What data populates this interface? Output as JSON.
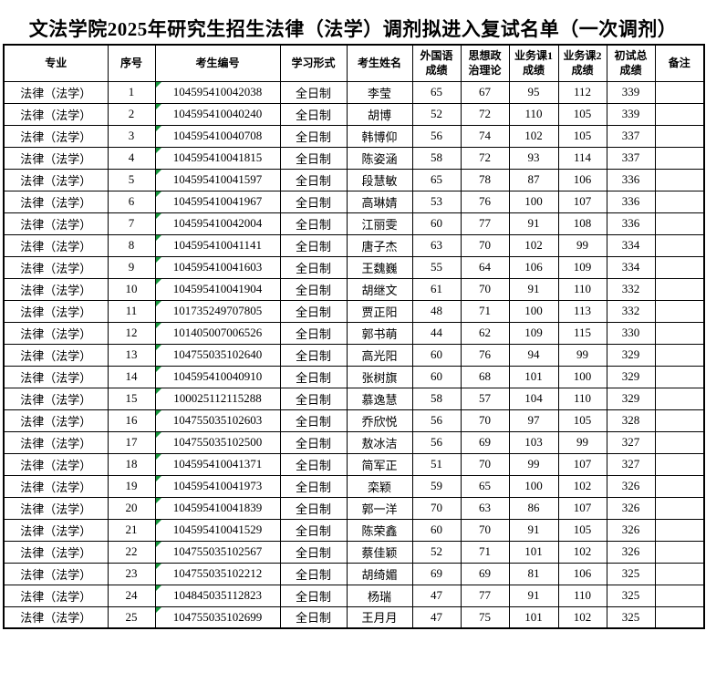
{
  "title": "文法学院2025年研究生招生法律（法学）调剂拟进入复试名单（一次调剂）",
  "colors": {
    "grid": "#000000",
    "text": "#000000",
    "background": "#ffffff",
    "text_format_flag_green": "#17963c"
  },
  "table": {
    "headers": [
      "专业",
      "序号",
      "考生编号",
      "学习形式",
      "考生姓名",
      "外国语\n成绩",
      "思想政\n治理论",
      "业务课1\n成绩",
      "业务课2\n成绩",
      "初试总\n成绩",
      "备注"
    ],
    "rows": [
      {
        "major": "法律（法学）",
        "no": "1",
        "candidate_no": "104595410042038",
        "study_form": "全日制",
        "name": "李莹",
        "foreign_lang": "65",
        "politics": "67",
        "course1": "95",
        "course2": "112",
        "total": "339",
        "remark": ""
      },
      {
        "major": "法律（法学）",
        "no": "2",
        "candidate_no": "104595410040240",
        "study_form": "全日制",
        "name": "胡博",
        "foreign_lang": "52",
        "politics": "72",
        "course1": "110",
        "course2": "105",
        "total": "339",
        "remark": ""
      },
      {
        "major": "法律（法学）",
        "no": "3",
        "candidate_no": "104595410040708",
        "study_form": "全日制",
        "name": "韩博仰",
        "foreign_lang": "56",
        "politics": "74",
        "course1": "102",
        "course2": "105",
        "total": "337",
        "remark": ""
      },
      {
        "major": "法律（法学）",
        "no": "4",
        "candidate_no": "104595410041815",
        "study_form": "全日制",
        "name": "陈姿涵",
        "foreign_lang": "58",
        "politics": "72",
        "course1": "93",
        "course2": "114",
        "total": "337",
        "remark": ""
      },
      {
        "major": "法律（法学）",
        "no": "5",
        "candidate_no": "104595410041597",
        "study_form": "全日制",
        "name": "段慧敏",
        "foreign_lang": "65",
        "politics": "78",
        "course1": "87",
        "course2": "106",
        "total": "336",
        "remark": ""
      },
      {
        "major": "法律（法学）",
        "no": "6",
        "candidate_no": "104595410041967",
        "study_form": "全日制",
        "name": "高琳婧",
        "foreign_lang": "53",
        "politics": "76",
        "course1": "100",
        "course2": "107",
        "total": "336",
        "remark": ""
      },
      {
        "major": "法律（法学）",
        "no": "7",
        "candidate_no": "104595410042004",
        "study_form": "全日制",
        "name": "江丽雯",
        "foreign_lang": "60",
        "politics": "77",
        "course1": "91",
        "course2": "108",
        "total": "336",
        "remark": ""
      },
      {
        "major": "法律（法学）",
        "no": "8",
        "candidate_no": "104595410041141",
        "study_form": "全日制",
        "name": "唐子杰",
        "foreign_lang": "63",
        "politics": "70",
        "course1": "102",
        "course2": "99",
        "total": "334",
        "remark": ""
      },
      {
        "major": "法律（法学）",
        "no": "9",
        "candidate_no": "104595410041603",
        "study_form": "全日制",
        "name": "王魏巍",
        "foreign_lang": "55",
        "politics": "64",
        "course1": "106",
        "course2": "109",
        "total": "334",
        "remark": ""
      },
      {
        "major": "法律（法学）",
        "no": "10",
        "candidate_no": "104595410041904",
        "study_form": "全日制",
        "name": "胡继文",
        "foreign_lang": "61",
        "politics": "70",
        "course1": "91",
        "course2": "110",
        "total": "332",
        "remark": ""
      },
      {
        "major": "法律（法学）",
        "no": "11",
        "candidate_no": "101735249707805",
        "study_form": "全日制",
        "name": "贾正阳",
        "foreign_lang": "48",
        "politics": "71",
        "course1": "100",
        "course2": "113",
        "total": "332",
        "remark": ""
      },
      {
        "major": "法律（法学）",
        "no": "12",
        "candidate_no": "101405007006526",
        "study_form": "全日制",
        "name": "郭书萌",
        "foreign_lang": "44",
        "politics": "62",
        "course1": "109",
        "course2": "115",
        "total": "330",
        "remark": ""
      },
      {
        "major": "法律（法学）",
        "no": "13",
        "candidate_no": "104755035102640",
        "study_form": "全日制",
        "name": "高光阳",
        "foreign_lang": "60",
        "politics": "76",
        "course1": "94",
        "course2": "99",
        "total": "329",
        "remark": ""
      },
      {
        "major": "法律（法学）",
        "no": "14",
        "candidate_no": "104595410040910",
        "study_form": "全日制",
        "name": "张树旗",
        "foreign_lang": "60",
        "politics": "68",
        "course1": "101",
        "course2": "100",
        "total": "329",
        "remark": ""
      },
      {
        "major": "法律（法学）",
        "no": "15",
        "candidate_no": "100025112115288",
        "study_form": "全日制",
        "name": "慕逸慧",
        "foreign_lang": "58",
        "politics": "57",
        "course1": "104",
        "course2": "110",
        "total": "329",
        "remark": ""
      },
      {
        "major": "法律（法学）",
        "no": "16",
        "candidate_no": "104755035102603",
        "study_form": "全日制",
        "name": "乔欣悦",
        "foreign_lang": "56",
        "politics": "70",
        "course1": "97",
        "course2": "105",
        "total": "328",
        "remark": ""
      },
      {
        "major": "法律（法学）",
        "no": "17",
        "candidate_no": "104755035102500",
        "study_form": "全日制",
        "name": "敖冰洁",
        "foreign_lang": "56",
        "politics": "69",
        "course1": "103",
        "course2": "99",
        "total": "327",
        "remark": ""
      },
      {
        "major": "法律（法学）",
        "no": "18",
        "candidate_no": "104595410041371",
        "study_form": "全日制",
        "name": "简军正",
        "foreign_lang": "51",
        "politics": "70",
        "course1": "99",
        "course2": "107",
        "total": "327",
        "remark": ""
      },
      {
        "major": "法律（法学）",
        "no": "19",
        "candidate_no": "104595410041973",
        "study_form": "全日制",
        "name": "栾颖",
        "foreign_lang": "59",
        "politics": "65",
        "course1": "100",
        "course2": "102",
        "total": "326",
        "remark": ""
      },
      {
        "major": "法律（法学）",
        "no": "20",
        "candidate_no": "104595410041839",
        "study_form": "全日制",
        "name": "郭一洋",
        "foreign_lang": "70",
        "politics": "63",
        "course1": "86",
        "course2": "107",
        "total": "326",
        "remark": ""
      },
      {
        "major": "法律（法学）",
        "no": "21",
        "candidate_no": "104595410041529",
        "study_form": "全日制",
        "name": "陈荣鑫",
        "foreign_lang": "60",
        "politics": "70",
        "course1": "91",
        "course2": "105",
        "total": "326",
        "remark": ""
      },
      {
        "major": "法律（法学）",
        "no": "22",
        "candidate_no": "104755035102567",
        "study_form": "全日制",
        "name": "蔡佳颖",
        "foreign_lang": "52",
        "politics": "71",
        "course1": "101",
        "course2": "102",
        "total": "326",
        "remark": ""
      },
      {
        "major": "法律（法学）",
        "no": "23",
        "candidate_no": "104755035102212",
        "study_form": "全日制",
        "name": "胡绮媚",
        "foreign_lang": "69",
        "politics": "69",
        "course1": "81",
        "course2": "106",
        "total": "325",
        "remark": ""
      },
      {
        "major": "法律（法学）",
        "no": "24",
        "candidate_no": "104845035112823",
        "study_form": "全日制",
        "name": "杨瑞",
        "foreign_lang": "47",
        "politics": "77",
        "course1": "91",
        "course2": "110",
        "total": "325",
        "remark": ""
      },
      {
        "major": "法律（法学）",
        "no": "25",
        "candidate_no": "104755035102699",
        "study_form": "全日制",
        "name": "王月月",
        "foreign_lang": "47",
        "politics": "75",
        "course1": "101",
        "course2": "102",
        "total": "325",
        "remark": ""
      }
    ]
  }
}
